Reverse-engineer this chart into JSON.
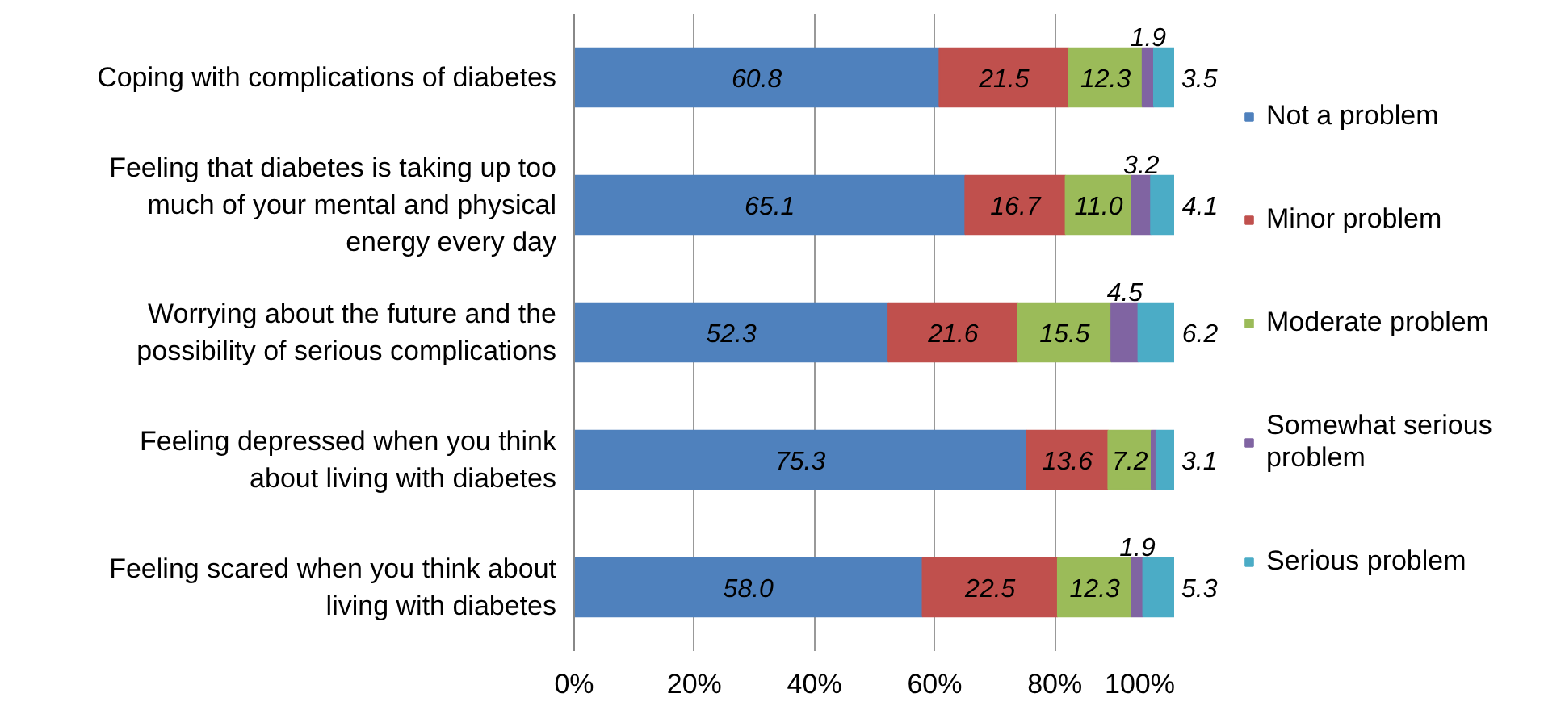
{
  "chart_data": {
    "type": "bar",
    "orientation": "horizontal",
    "stacked": true,
    "categories": [
      "Coping with complications of diabetes",
      "Feeling that diabetes is taking up too\nmuch of your mental and physical\nenergy every day",
      "Worrying about the future and the\npossibility of serious complications",
      "Feeling depressed when you think\nabout living with diabetes",
      "Feeling scared when you think about\nliving with diabetes"
    ],
    "series": [
      {
        "name": "Not a problem",
        "color": "#4f81bd",
        "values": [
          60.8,
          65.1,
          52.3,
          75.3,
          58.0
        ],
        "value_labels": [
          "60.8",
          "65.1",
          "52.3",
          "75.3",
          "58.0"
        ]
      },
      {
        "name": "Minor problem",
        "color": "#c0504d",
        "values": [
          21.5,
          16.7,
          21.6,
          13.6,
          22.5
        ],
        "value_labels": [
          "21.5",
          "16.7",
          "21.6",
          "13.6",
          "22.5"
        ]
      },
      {
        "name": "Moderate problem",
        "color": "#9bbb59",
        "values": [
          12.3,
          11.0,
          15.5,
          7.2,
          12.3
        ],
        "value_labels": [
          "12.3",
          "11.0",
          "15.5",
          "7.2",
          "12.3"
        ]
      },
      {
        "name": "Somewhat serious\nproblem",
        "color": "#8064a2",
        "values": [
          1.9,
          3.2,
          4.5,
          0.8,
          1.9
        ],
        "value_labels": [
          "1.9",
          "3.2",
          "4.5",
          null,
          "1.9"
        ]
      },
      {
        "name": "Serious problem",
        "color": "#4bacc6",
        "values": [
          3.5,
          4.1,
          6.2,
          3.1,
          5.3
        ],
        "value_labels": [
          "3.5",
          "4.1",
          "6.2",
          "3.1",
          "5.3"
        ]
      }
    ],
    "xlim": [
      0,
      100
    ],
    "xticks": [
      {
        "value": 0,
        "label": "0%"
      },
      {
        "value": 20,
        "label": "20%"
      },
      {
        "value": 40,
        "label": "40%"
      },
      {
        "value": 60,
        "label": "60%"
      },
      {
        "value": 80,
        "label": "80%"
      },
      {
        "value": 100,
        "label": "100%"
      }
    ],
    "grid": "x",
    "legend": "right"
  }
}
